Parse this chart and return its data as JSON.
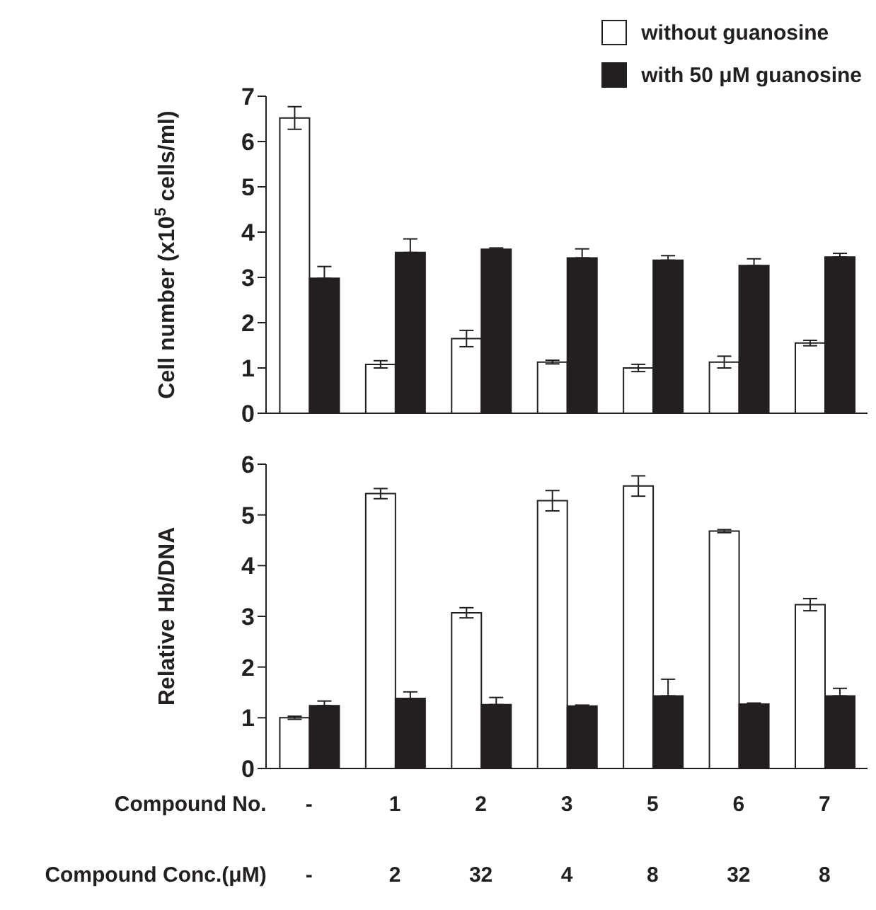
{
  "chart_data": [
    {
      "type": "bar",
      "ylabel": "Cell number (x10$^{5}$ cells/ml)",
      "categories": [
        null,
        null,
        null,
        null,
        null,
        null,
        null
      ],
      "tick_labels": "y",
      "ylim": [
        0,
        7
      ],
      "yticks": [
        0,
        1,
        2,
        3,
        4,
        5,
        6,
        7
      ],
      "legend": "top right",
      "series": [
        {
          "name": "without guanosine",
          "color": "#ffffff",
          "values": [
            6.52,
            1.08,
            1.65,
            1.13,
            1.0,
            1.13,
            1.55
          ],
          "errors": [
            0.25,
            0.08,
            0.18,
            0.04,
            0.08,
            0.13,
            0.06
          ]
        },
        {
          "name": "with 50 μM guanosine",
          "color": "#231f20",
          "values": [
            2.98,
            3.55,
            3.62,
            3.43,
            3.38,
            3.26,
            3.45
          ],
          "errors": [
            [
              2.98,
              3.24
            ],
            [
              3.55,
              3.85
            ],
            [
              3.62,
              3.65
            ],
            [
              3.43,
              3.63
            ],
            [
              3.38,
              3.48
            ],
            [
              3.26,
              3.41
            ],
            [
              3.45,
              3.53
            ]
          ]
        }
      ]
    },
    {
      "type": "bar",
      "ylabel": "Relative Hb/DNA",
      "xlabel": "Compound No.",
      "categories": [
        "-",
        "1",
        "2",
        "3",
        "5",
        "6",
        "7"
      ],
      "ylim": [
        0,
        6
      ],
      "yticks": [
        0,
        1,
        2,
        3,
        4,
        5,
        6
      ],
      "annotations": [
        "Compound Conc.(μM)",
        "-",
        "2",
        "32",
        "4",
        "8",
        "32",
        "8"
      ],
      "series": [
        {
          "color": "#ffffff",
          "values": [
            1.0,
            5.42,
            3.07,
            5.28,
            5.57,
            4.68,
            3.23
          ],
          "errors": [
            0.03,
            0.1,
            0.1,
            0.2,
            0.2,
            0.03,
            0.12
          ]
        },
        {
          "color": "#231f20",
          "values": [
            1.24,
            1.38,
            1.26,
            1.23,
            1.43,
            1.27,
            1.43
          ],
          "errors": [
            [
              1.24,
              1.33
            ],
            [
              1.38,
              1.51
            ],
            [
              1.26,
              1.4
            ],
            [
              1.23,
              1.25
            ],
            [
              1.43,
              1.76
            ],
            [
              1.27,
              1.29
            ],
            [
              1.43,
              1.58
            ]
          ]
        }
      ]
    }
  ]
}
